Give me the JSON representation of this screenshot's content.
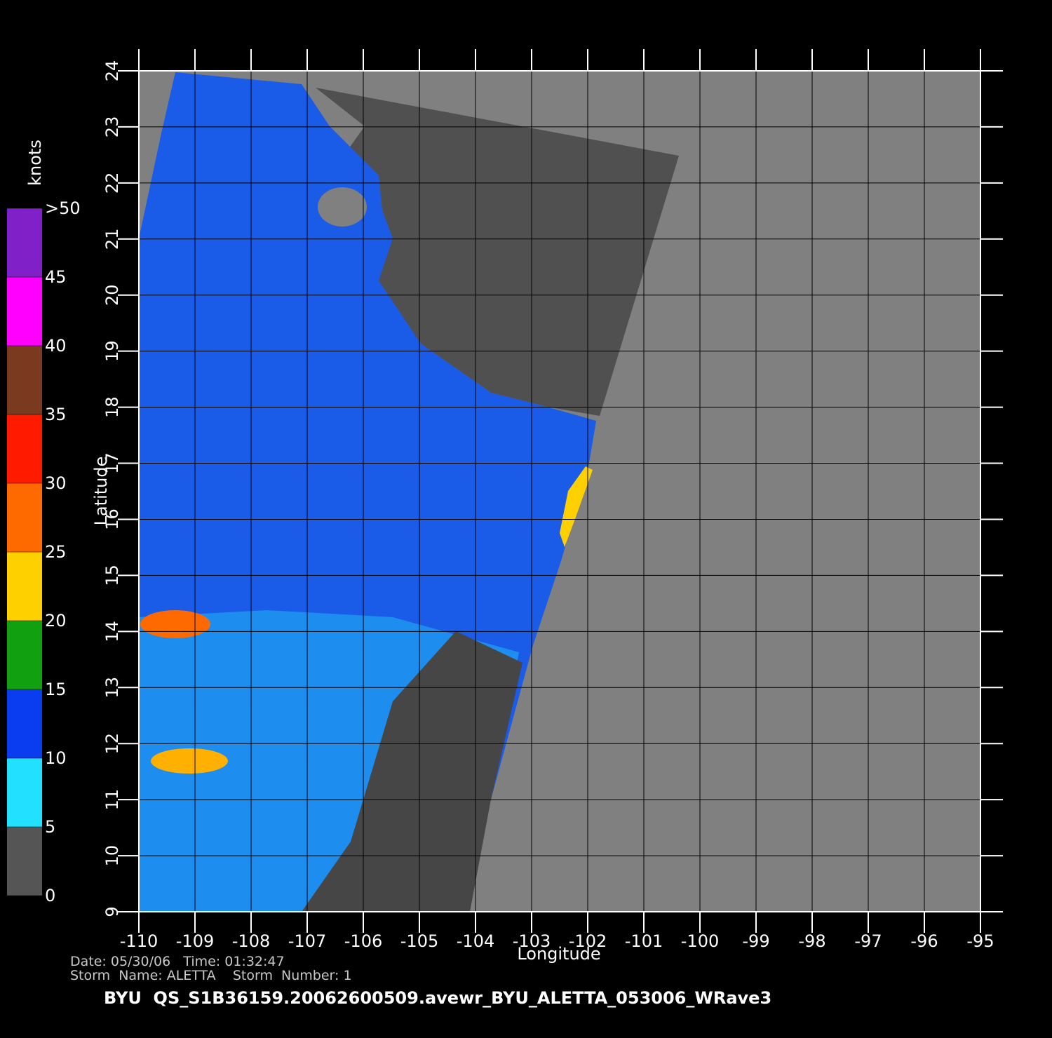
{
  "map": {
    "xlabel": "Longitude",
    "ylabel": "Latitude",
    "xlim": [
      -110,
      -95
    ],
    "ylim": [
      9,
      24
    ],
    "xticks": [
      -110,
      -109,
      -108,
      -107,
      -106,
      -105,
      -104,
      -103,
      -102,
      -101,
      -100,
      -99,
      -98,
      -97,
      -96,
      -95
    ],
    "yticks": [
      9,
      10,
      11,
      12,
      13,
      14,
      15,
      16,
      17,
      18,
      19,
      20,
      21,
      22,
      23,
      24
    ]
  },
  "colorbar": {
    "title": "knots",
    "lim": [
      0,
      50
    ],
    "ticks": [
      0,
      5,
      10,
      15,
      20,
      25,
      30,
      35,
      40,
      45,
      {
        "value": 50,
        "label": ">50"
      }
    ],
    "colors": [
      "#555555",
      "#22e0ff",
      "#0a3cf0",
      "#10a010",
      "#ffd000",
      "#ff6a00",
      "#ff1a00",
      "#7a3a20",
      "#ff00ff",
      "#8020c8"
    ]
  },
  "footer": {
    "date_line": "Date: 05/30/06   Time: 01:32:47",
    "storm_line": "Storm  Name: ALETTA    Storm  Number: 1",
    "title": "BYU  QS_S1B36159.20062600509.avewr_BYU_ALETTA_053006_WRave3"
  }
}
